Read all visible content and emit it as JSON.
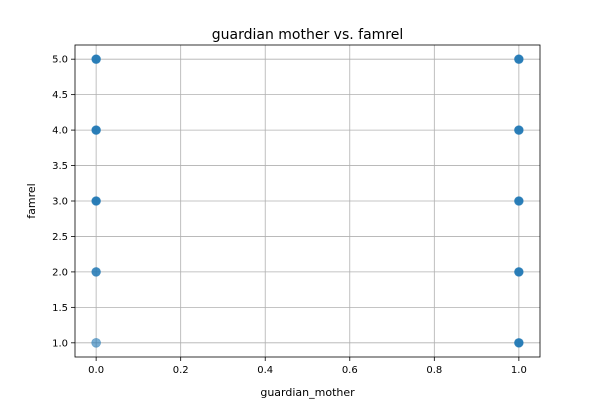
{
  "chart_data": {
    "type": "scatter",
    "title": "guardian mother vs. famrel",
    "xlabel": "guardian_mother",
    "ylabel": "famrel",
    "xlim": [
      -0.05,
      1.05
    ],
    "ylim": [
      0.8,
      5.2
    ],
    "xticks": [
      "0.0",
      "0.2",
      "0.4",
      "0.6",
      "0.8",
      "1.0"
    ],
    "yticks": [
      "1.0",
      "1.5",
      "2.0",
      "2.5",
      "3.0",
      "3.5",
      "4.0",
      "4.5",
      "5.0"
    ],
    "grid": true,
    "marker_color": "#1f77b4",
    "points": [
      {
        "x": 0,
        "y": 5,
        "density": "high"
      },
      {
        "x": 0,
        "y": 4,
        "density": "high"
      },
      {
        "x": 0,
        "y": 3,
        "density": "high"
      },
      {
        "x": 0,
        "y": 2,
        "density": "medium"
      },
      {
        "x": 0,
        "y": 1,
        "density": "low"
      },
      {
        "x": 1,
        "y": 5,
        "density": "high"
      },
      {
        "x": 1,
        "y": 4,
        "density": "high"
      },
      {
        "x": 1,
        "y": 3,
        "density": "high"
      },
      {
        "x": 1,
        "y": 2,
        "density": "high"
      },
      {
        "x": 1,
        "y": 1,
        "density": "high"
      }
    ]
  }
}
